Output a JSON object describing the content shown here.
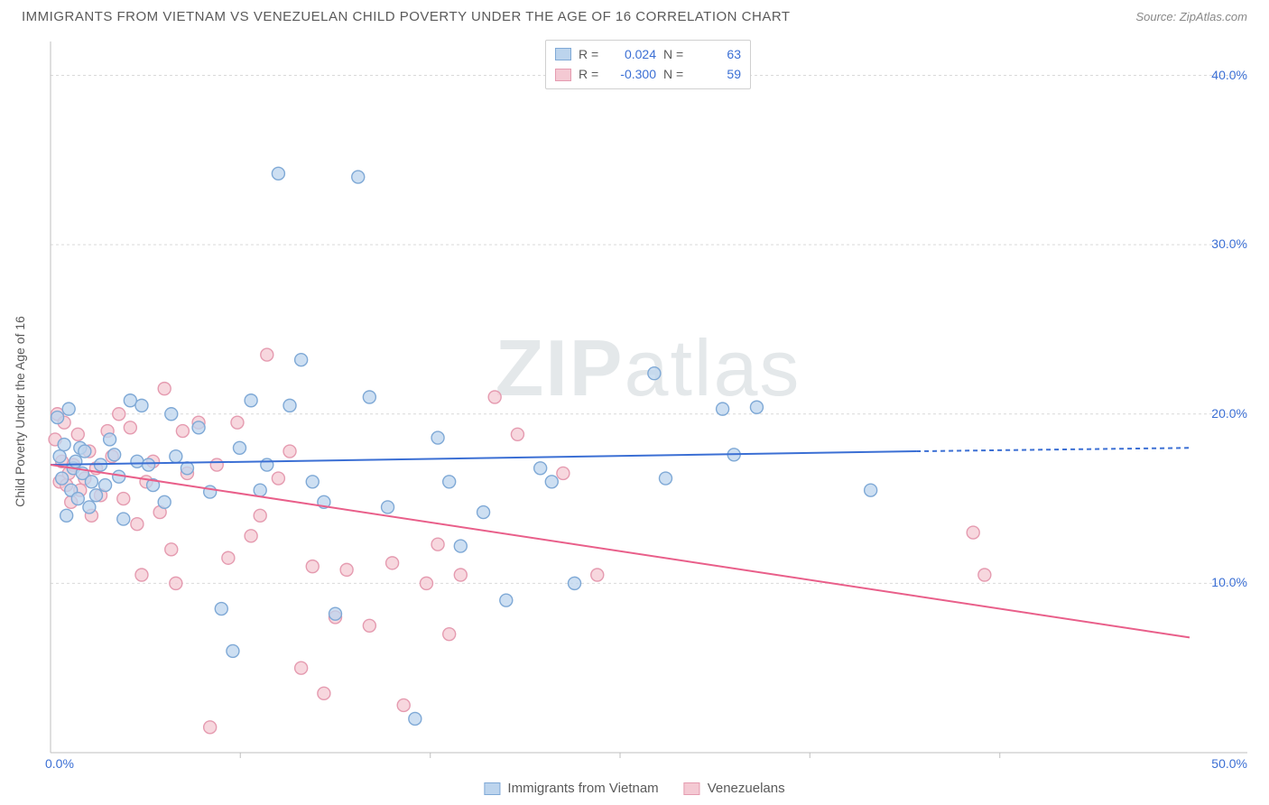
{
  "header": {
    "title": "IMMIGRANTS FROM VIETNAM VS VENEZUELAN CHILD POVERTY UNDER THE AGE OF 16 CORRELATION CHART",
    "source_prefix": "Source: ",
    "source_name": "ZipAtlas.com"
  },
  "watermark": {
    "part1": "ZIP",
    "part2": "atlas"
  },
  "y_axis": {
    "label": "Child Poverty Under the Age of 16"
  },
  "chart": {
    "type": "scatter",
    "xlim": [
      0,
      50
    ],
    "ylim": [
      0,
      42
    ],
    "x_origin_label": "0.0%",
    "x_max_label": "50.0%",
    "y_ticks": [
      10,
      20,
      30,
      40
    ],
    "y_tick_labels": [
      "10.0%",
      "20.0%",
      "30.0%",
      "40.0%"
    ],
    "x_tick_positions": [
      8.33,
      16.67,
      25,
      33.33,
      41.67
    ],
    "grid_color": "#d9d9d9",
    "axis_color": "#bfbfbf",
    "background": "#ffffff",
    "marker_radius": 7,
    "marker_stroke_width": 1.4,
    "line_width": 2,
    "series": [
      {
        "name": "Immigrants from Vietnam",
        "fill": "#bcd4ed",
        "stroke": "#7fa9d6",
        "line_color": "#3b6fd4",
        "R": "0.024",
        "N": "63",
        "trend": {
          "x1": 0,
          "y1": 17.0,
          "x2": 38,
          "y2": 17.8,
          "dash_to_x": 50,
          "dash_to_y": 18.0
        },
        "points": [
          [
            0.3,
            19.8
          ],
          [
            0.4,
            17.5
          ],
          [
            0.5,
            16.2
          ],
          [
            0.6,
            18.2
          ],
          [
            0.7,
            14.0
          ],
          [
            0.8,
            20.3
          ],
          [
            0.9,
            15.5
          ],
          [
            1.0,
            16.8
          ],
          [
            1.1,
            17.2
          ],
          [
            1.2,
            15.0
          ],
          [
            1.3,
            18.0
          ],
          [
            1.4,
            16.5
          ],
          [
            1.5,
            17.8
          ],
          [
            1.7,
            14.5
          ],
          [
            1.8,
            16.0
          ],
          [
            2.0,
            15.2
          ],
          [
            2.2,
            17.0
          ],
          [
            2.4,
            15.8
          ],
          [
            2.6,
            18.5
          ],
          [
            2.8,
            17.6
          ],
          [
            3.0,
            16.3
          ],
          [
            3.2,
            13.8
          ],
          [
            3.5,
            20.8
          ],
          [
            3.8,
            17.2
          ],
          [
            4.0,
            20.5
          ],
          [
            4.3,
            17.0
          ],
          [
            4.5,
            15.8
          ],
          [
            5.0,
            14.8
          ],
          [
            5.3,
            20.0
          ],
          [
            5.5,
            17.5
          ],
          [
            6.0,
            16.8
          ],
          [
            6.5,
            19.2
          ],
          [
            7.0,
            15.4
          ],
          [
            7.5,
            8.5
          ],
          [
            8.0,
            6.0
          ],
          [
            8.3,
            18.0
          ],
          [
            8.8,
            20.8
          ],
          [
            9.2,
            15.5
          ],
          [
            9.5,
            17.0
          ],
          [
            10.0,
            34.2
          ],
          [
            10.5,
            20.5
          ],
          [
            11.0,
            23.2
          ],
          [
            11.5,
            16.0
          ],
          [
            12.0,
            14.8
          ],
          [
            12.5,
            8.2
          ],
          [
            13.5,
            34.0
          ],
          [
            14.0,
            21.0
          ],
          [
            14.8,
            14.5
          ],
          [
            16.0,
            2.0
          ],
          [
            17.0,
            18.6
          ],
          [
            17.5,
            16.0
          ],
          [
            18.0,
            12.2
          ],
          [
            19.0,
            14.2
          ],
          [
            20.0,
            9.0
          ],
          [
            21.5,
            16.8
          ],
          [
            22.0,
            16.0
          ],
          [
            23.0,
            10.0
          ],
          [
            26.5,
            22.4
          ],
          [
            27.0,
            16.2
          ],
          [
            29.5,
            20.3
          ],
          [
            30.0,
            17.6
          ],
          [
            31.0,
            20.4
          ],
          [
            36.0,
            15.5
          ]
        ]
      },
      {
        "name": "Venezuelans",
        "fill": "#f4c9d3",
        "stroke": "#e59bb0",
        "line_color": "#e95f8a",
        "R": "-0.300",
        "N": "59",
        "trend": {
          "x1": 0,
          "y1": 17.0,
          "x2": 50,
          "y2": 6.8
        },
        "points": [
          [
            0.2,
            18.5
          ],
          [
            0.3,
            20.0
          ],
          [
            0.4,
            16.0
          ],
          [
            0.5,
            17.2
          ],
          [
            0.6,
            19.5
          ],
          [
            0.7,
            15.8
          ],
          [
            0.8,
            16.5
          ],
          [
            0.9,
            14.8
          ],
          [
            1.0,
            17.0
          ],
          [
            1.2,
            18.8
          ],
          [
            1.3,
            15.5
          ],
          [
            1.5,
            16.2
          ],
          [
            1.7,
            17.8
          ],
          [
            1.8,
            14.0
          ],
          [
            2.0,
            16.8
          ],
          [
            2.2,
            15.2
          ],
          [
            2.5,
            19.0
          ],
          [
            2.7,
            17.5
          ],
          [
            3.0,
            20.0
          ],
          [
            3.2,
            15.0
          ],
          [
            3.5,
            19.2
          ],
          [
            3.8,
            13.5
          ],
          [
            4.0,
            10.5
          ],
          [
            4.2,
            16.0
          ],
          [
            4.5,
            17.2
          ],
          [
            4.8,
            14.2
          ],
          [
            5.0,
            21.5
          ],
          [
            5.3,
            12.0
          ],
          [
            5.5,
            10.0
          ],
          [
            5.8,
            19.0
          ],
          [
            6.0,
            16.5
          ],
          [
            6.5,
            19.5
          ],
          [
            7.0,
            1.5
          ],
          [
            7.3,
            17.0
          ],
          [
            7.8,
            11.5
          ],
          [
            8.2,
            19.5
          ],
          [
            8.8,
            12.8
          ],
          [
            9.2,
            14.0
          ],
          [
            9.5,
            23.5
          ],
          [
            10.0,
            16.2
          ],
          [
            10.5,
            17.8
          ],
          [
            11.0,
            5.0
          ],
          [
            11.5,
            11.0
          ],
          [
            12.0,
            3.5
          ],
          [
            12.5,
            8.0
          ],
          [
            13.0,
            10.8
          ],
          [
            14.0,
            7.5
          ],
          [
            15.0,
            11.2
          ],
          [
            15.5,
            2.8
          ],
          [
            16.5,
            10.0
          ],
          [
            17.0,
            12.3
          ],
          [
            17.5,
            7.0
          ],
          [
            18.0,
            10.5
          ],
          [
            19.5,
            21.0
          ],
          [
            20.5,
            18.8
          ],
          [
            22.5,
            16.5
          ],
          [
            24.0,
            10.5
          ],
          [
            40.5,
            13.0
          ],
          [
            41.0,
            10.5
          ]
        ]
      }
    ]
  },
  "legend_top": {
    "r_label": "R =",
    "n_label": "N ="
  },
  "legend_bottom": {
    "series1": "Immigrants from Vietnam",
    "series2": "Venezuelans"
  }
}
